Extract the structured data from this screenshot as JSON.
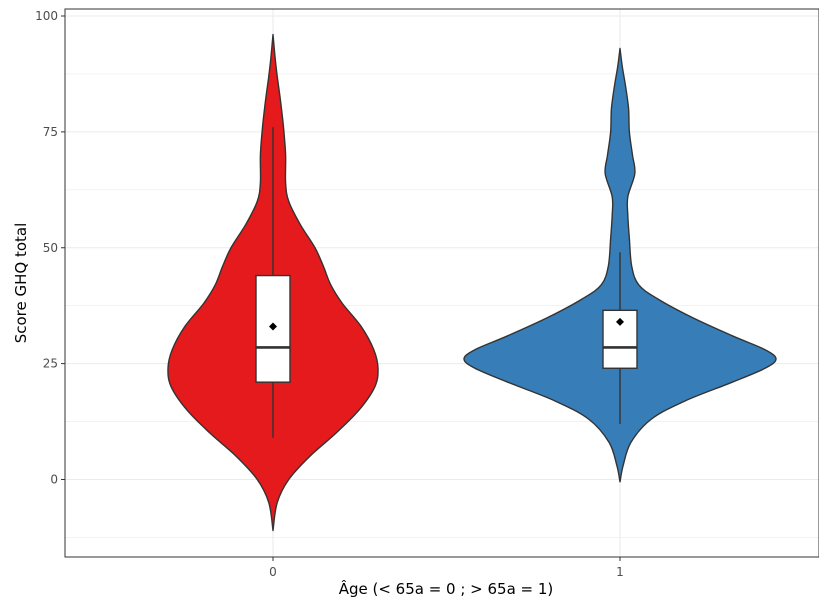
{
  "chart_data": {
    "type": "violin",
    "xlabel": "Âge (< 65a = 0 ; > 65a = 1)",
    "ylabel": "Score GHQ total",
    "ylim": [
      -17,
      102
    ],
    "y_ticks": [
      0,
      25,
      50,
      75,
      100
    ],
    "y_tick_labels": [
      "0",
      "25",
      "50",
      "75",
      "100"
    ],
    "categories": [
      "0",
      "1"
    ],
    "grid": true,
    "groups": [
      {
        "category": "0",
        "color": "#e41a1c",
        "violin_min": -11,
        "violin_max": 96,
        "density_profile": [
          [
            -11,
            0.0
          ],
          [
            -5,
            0.04
          ],
          [
            0,
            0.15
          ],
          [
            5,
            0.35
          ],
          [
            10,
            0.6
          ],
          [
            15,
            0.82
          ],
          [
            20,
            0.97
          ],
          [
            24,
            1.0
          ],
          [
            28,
            0.96
          ],
          [
            33,
            0.84
          ],
          [
            38,
            0.66
          ],
          [
            42,
            0.55
          ],
          [
            46,
            0.48
          ],
          [
            50,
            0.4
          ],
          [
            55,
            0.26
          ],
          [
            60,
            0.15
          ],
          [
            64,
            0.12
          ],
          [
            70,
            0.12
          ],
          [
            76,
            0.1
          ],
          [
            82,
            0.07
          ],
          [
            87,
            0.04
          ],
          [
            91,
            0.02
          ],
          [
            96,
            0.0
          ]
        ],
        "box": {
          "whisker_low": 9,
          "q1": 21,
          "median": 28.5,
          "q3": 44,
          "whisker_high": 76
        },
        "mean": 33
      },
      {
        "category": "1",
        "color": "#377eb8",
        "violin_min": -0.5,
        "violin_max": 93,
        "density_profile": [
          [
            -0.5,
            0.0
          ],
          [
            3,
            0.02
          ],
          [
            8,
            0.07
          ],
          [
            13,
            0.2
          ],
          [
            17,
            0.42
          ],
          [
            21,
            0.72
          ],
          [
            24,
            0.93
          ],
          [
            26,
            1.0
          ],
          [
            28,
            0.93
          ],
          [
            31,
            0.72
          ],
          [
            35,
            0.46
          ],
          [
            39,
            0.24
          ],
          [
            42,
            0.12
          ],
          [
            46,
            0.075
          ],
          [
            52,
            0.06
          ],
          [
            57,
            0.05
          ],
          [
            61,
            0.05
          ],
          [
            66,
            0.095
          ],
          [
            70,
            0.08
          ],
          [
            75,
            0.06
          ],
          [
            80,
            0.055
          ],
          [
            85,
            0.035
          ],
          [
            89,
            0.015
          ],
          [
            93,
            0.0
          ]
        ],
        "box": {
          "whisker_low": 12,
          "q1": 24,
          "median": 28.5,
          "q3": 36.5,
          "whisker_high": 49
        },
        "mean": 34
      }
    ]
  }
}
